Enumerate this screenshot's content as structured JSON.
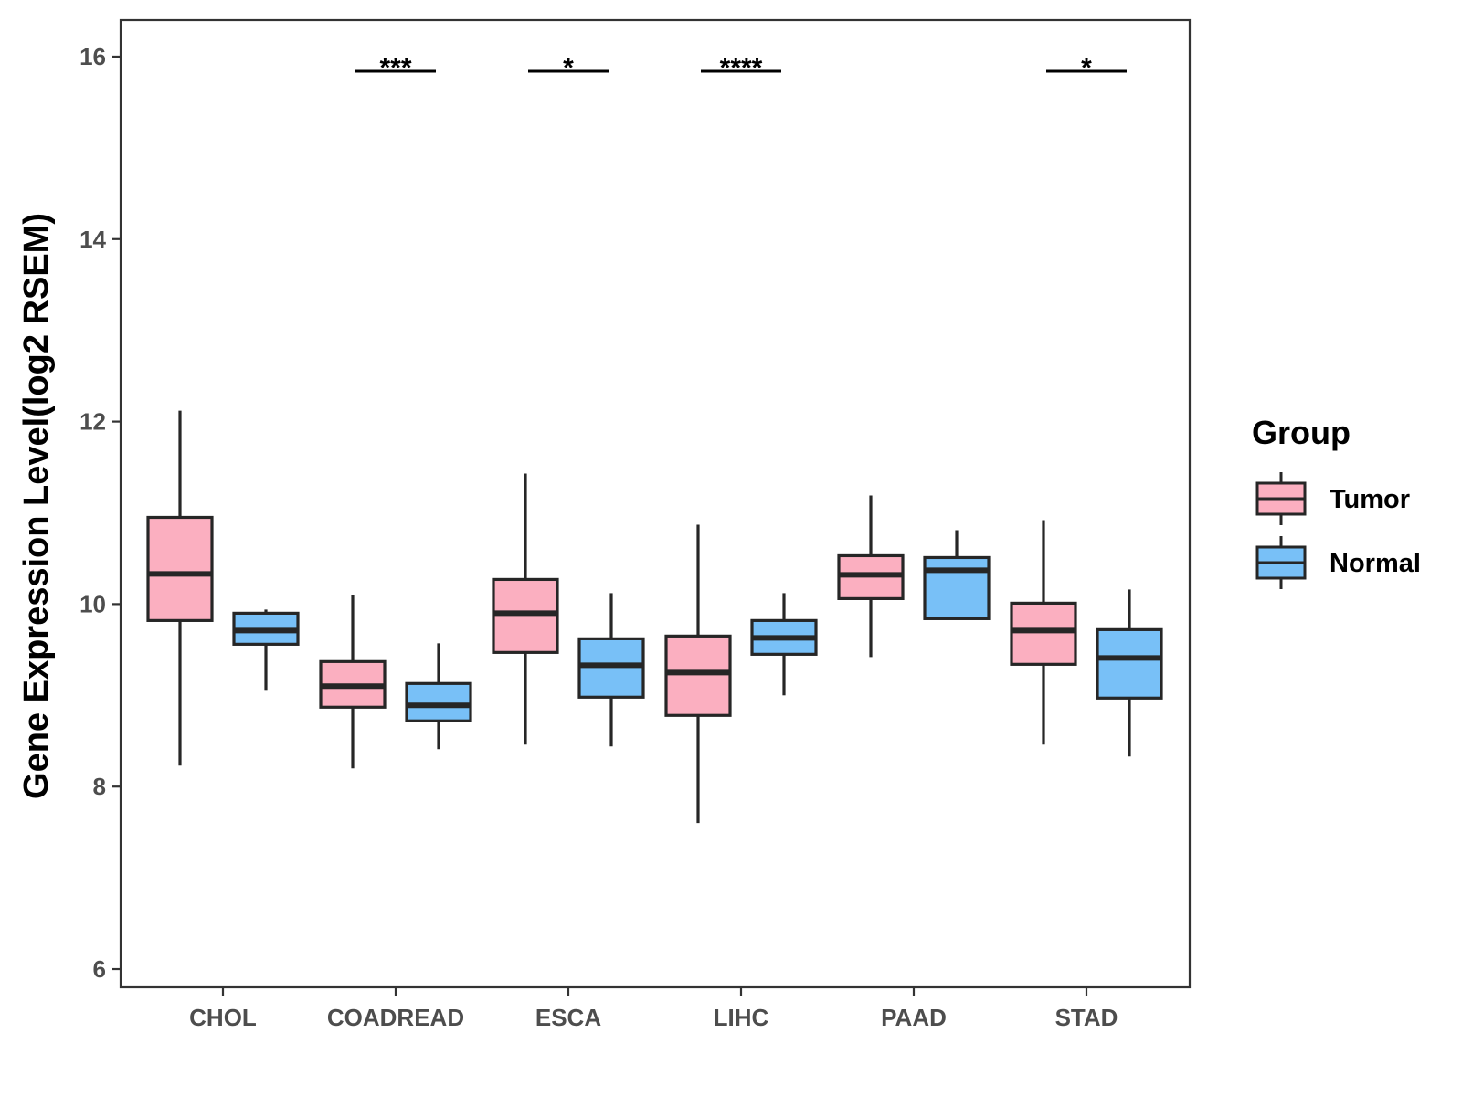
{
  "chart_data": {
    "type": "boxplot",
    "title": "",
    "xlabel": "",
    "ylabel": "Gene Expression Level(log2 RSEM)",
    "ylim": [
      5.8,
      16.4
    ],
    "yticks": [
      6,
      8,
      10,
      12,
      14,
      16
    ],
    "categories": [
      "CHOL",
      "COADREAD",
      "ESCA",
      "LIHC",
      "PAAD",
      "STAD"
    ],
    "legend": {
      "title": "Group",
      "position": "right",
      "entries": [
        {
          "label": "Tumor",
          "color": "#fbafc0"
        },
        {
          "label": "Normal",
          "color": "#78c0f7"
        }
      ]
    },
    "series": [
      {
        "name": "Tumor",
        "color": "#fbafc0",
        "boxes": [
          {
            "min": 8.23,
            "q1": 9.82,
            "median": 10.33,
            "q3": 10.95,
            "max": 12.12
          },
          {
            "min": 8.2,
            "q1": 8.87,
            "median": 9.1,
            "q3": 9.37,
            "max": 10.1
          },
          {
            "min": 8.46,
            "q1": 9.47,
            "median": 9.9,
            "q3": 10.27,
            "max": 11.43
          },
          {
            "min": 7.6,
            "q1": 8.78,
            "median": 9.25,
            "q3": 9.65,
            "max": 10.87
          },
          {
            "min": 9.42,
            "q1": 10.06,
            "median": 10.32,
            "q3": 10.53,
            "max": 11.19
          },
          {
            "min": 8.46,
            "q1": 9.34,
            "median": 9.71,
            "q3": 10.01,
            "max": 10.92
          }
        ]
      },
      {
        "name": "Normal",
        "color": "#78c0f7",
        "boxes": [
          {
            "min": 9.05,
            "q1": 9.56,
            "median": 9.71,
            "q3": 9.9,
            "max": 9.94
          },
          {
            "min": 8.41,
            "q1": 8.72,
            "median": 8.89,
            "q3": 9.13,
            "max": 9.57
          },
          {
            "min": 8.44,
            "q1": 8.98,
            "median": 9.33,
            "q3": 9.62,
            "max": 10.12
          },
          {
            "min": 9.0,
            "q1": 9.45,
            "median": 9.63,
            "q3": 9.82,
            "max": 10.12
          },
          {
            "min": 9.84,
            "q1": 9.84,
            "median": 10.37,
            "q3": 10.51,
            "max": 10.81
          },
          {
            "min": 8.33,
            "q1": 8.97,
            "median": 9.41,
            "q3": 9.72,
            "max": 10.16
          }
        ]
      }
    ],
    "significance": [
      {
        "category": "COADREAD",
        "label": "***",
        "y": 15.84
      },
      {
        "category": "ESCA",
        "label": "*",
        "y": 15.84
      },
      {
        "category": "LIHC",
        "label": "****",
        "y": 15.84
      },
      {
        "category": "STAD",
        "label": "*",
        "y": 15.84
      }
    ]
  }
}
